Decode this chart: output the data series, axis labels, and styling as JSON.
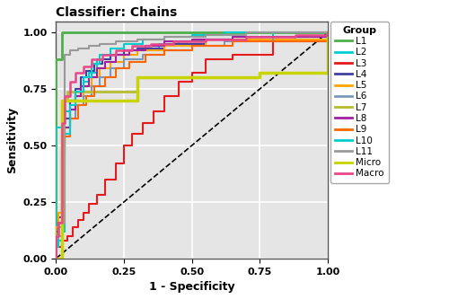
{
  "title": "Classifier: Chains",
  "xlabel": "1 - Specificity",
  "ylabel": "Sensitivity",
  "xlim": [
    0.0,
    1.0
  ],
  "ylim": [
    0.0,
    1.05
  ],
  "background_color": "#e5e5e5",
  "grid_color": "white",
  "groups": [
    "L1",
    "L2",
    "L3",
    "L4",
    "L5",
    "L6",
    "L7",
    "L8",
    "L9",
    "L10",
    "L11",
    "Micro",
    "Macro"
  ],
  "colors": {
    "L1": "#4daf4a",
    "L2": "#00ced1",
    "L3": "#e41a1c",
    "L4": "#4040a0",
    "L5": "#ffa500",
    "L6": "#7799bb",
    "L7": "#b8bc30",
    "L8": "#a020a0",
    "L9": "#ff6600",
    "L10": "#00cccc",
    "L11": "#999999",
    "Micro": "#c8d400",
    "Macro": "#e8488a"
  },
  "curves": {
    "L1": {
      "x": [
        0.0,
        0.0,
        0.02,
        0.02,
        0.3,
        0.3,
        1.0
      ],
      "y": [
        0.0,
        0.88,
        0.88,
        1.0,
        1.0,
        1.0,
        1.0
      ]
    },
    "L2": {
      "x": [
        0.0,
        0.0,
        0.02,
        0.03,
        0.05,
        0.07,
        0.1,
        0.12,
        0.15,
        0.2,
        0.25,
        0.3,
        0.38,
        0.45,
        0.55,
        0.65,
        0.8,
        1.0
      ],
      "y": [
        0.0,
        0.58,
        0.6,
        0.65,
        0.7,
        0.74,
        0.78,
        0.82,
        0.88,
        0.9,
        0.92,
        0.93,
        0.95,
        0.96,
        0.97,
        0.98,
        1.0,
        1.0
      ]
    },
    "L3": {
      "x": [
        0.0,
        0.0,
        0.02,
        0.04,
        0.06,
        0.08,
        0.1,
        0.12,
        0.15,
        0.18,
        0.22,
        0.25,
        0.28,
        0.32,
        0.36,
        0.4,
        0.45,
        0.5,
        0.55,
        0.65,
        0.8,
        1.0
      ],
      "y": [
        0.0,
        0.05,
        0.08,
        0.1,
        0.14,
        0.17,
        0.2,
        0.24,
        0.28,
        0.35,
        0.42,
        0.5,
        0.55,
        0.6,
        0.65,
        0.72,
        0.78,
        0.82,
        0.88,
        0.9,
        0.96,
        1.0
      ]
    },
    "L4": {
      "x": [
        0.0,
        0.0,
        0.01,
        0.02,
        0.03,
        0.05,
        0.07,
        0.09,
        0.11,
        0.14,
        0.17,
        0.2,
        0.25,
        0.3,
        0.4,
        0.55,
        1.0
      ],
      "y": [
        0.0,
        0.12,
        0.18,
        0.55,
        0.62,
        0.7,
        0.75,
        0.8,
        0.83,
        0.86,
        0.88,
        0.9,
        0.92,
        0.93,
        0.95,
        0.97,
        1.0
      ]
    },
    "L5": {
      "x": [
        0.0,
        0.0,
        0.01,
        0.02,
        0.03,
        0.05,
        0.07,
        0.1,
        0.13,
        0.16,
        0.2,
        0.25,
        0.3,
        0.4,
        0.55,
        1.0
      ],
      "y": [
        0.0,
        0.14,
        0.2,
        0.5,
        0.58,
        0.66,
        0.72,
        0.76,
        0.8,
        0.84,
        0.87,
        0.9,
        0.92,
        0.94,
        0.97,
        1.0
      ]
    },
    "L6": {
      "x": [
        0.0,
        0.0,
        0.01,
        0.02,
        0.03,
        0.05,
        0.07,
        0.1,
        0.13,
        0.16,
        0.2,
        0.25,
        0.32,
        0.4,
        0.5,
        0.62,
        0.8,
        1.0
      ],
      "y": [
        0.0,
        0.06,
        0.1,
        0.42,
        0.55,
        0.62,
        0.68,
        0.72,
        0.76,
        0.8,
        0.84,
        0.88,
        0.9,
        0.92,
        0.94,
        0.96,
        0.98,
        1.0
      ]
    },
    "L7": {
      "x": [
        0.0,
        0.0,
        0.02,
        0.02,
        0.04,
        0.04,
        0.3,
        0.3,
        0.75,
        0.75,
        1.0
      ],
      "y": [
        0.0,
        0.0,
        0.0,
        0.7,
        0.7,
        0.74,
        0.74,
        0.8,
        0.8,
        0.82,
        1.0
      ]
    },
    "L8": {
      "x": [
        0.0,
        0.0,
        0.01,
        0.02,
        0.03,
        0.05,
        0.07,
        0.09,
        0.12,
        0.15,
        0.18,
        0.22,
        0.27,
        0.33,
        0.4,
        0.5,
        0.65,
        1.0
      ],
      "y": [
        0.0,
        0.1,
        0.16,
        0.48,
        0.58,
        0.66,
        0.72,
        0.76,
        0.8,
        0.84,
        0.87,
        0.9,
        0.92,
        0.94,
        0.96,
        0.97,
        0.98,
        1.0
      ]
    },
    "L9": {
      "x": [
        0.0,
        0.0,
        0.01,
        0.02,
        0.03,
        0.05,
        0.08,
        0.11,
        0.14,
        0.18,
        0.22,
        0.27,
        0.33,
        0.4,
        0.5,
        0.65,
        1.0
      ],
      "y": [
        0.0,
        0.1,
        0.16,
        0.46,
        0.54,
        0.62,
        0.68,
        0.72,
        0.76,
        0.8,
        0.84,
        0.87,
        0.9,
        0.92,
        0.94,
        0.96,
        1.0
      ]
    },
    "L10": {
      "x": [
        0.0,
        0.0,
        0.01,
        0.02,
        0.03,
        0.05,
        0.07,
        0.1,
        0.13,
        0.16,
        0.2,
        0.25,
        0.32,
        0.4,
        0.5,
        0.62,
        0.8,
        0.9,
        1.0
      ],
      "y": [
        0.0,
        0.05,
        0.08,
        0.12,
        0.55,
        0.68,
        0.74,
        0.8,
        0.86,
        0.9,
        0.93,
        0.95,
        0.97,
        0.98,
        0.99,
        1.0,
        1.0,
        1.0,
        1.0
      ]
    },
    "L11": {
      "x": [
        0.0,
        0.0,
        0.01,
        0.02,
        0.03,
        0.05,
        0.08,
        0.12,
        0.16,
        0.22,
        0.3,
        0.4,
        0.55,
        0.7,
        0.85,
        1.0
      ],
      "y": [
        0.0,
        0.1,
        0.14,
        0.16,
        0.9,
        0.92,
        0.93,
        0.94,
        0.95,
        0.96,
        0.97,
        0.98,
        0.99,
        1.0,
        1.0,
        1.0
      ]
    },
    "Micro": {
      "x": [
        0.0,
        0.0,
        0.02,
        0.02,
        0.04,
        0.3,
        0.3,
        0.75,
        0.75,
        1.0
      ],
      "y": [
        0.0,
        0.0,
        0.0,
        0.7,
        0.7,
        0.7,
        0.8,
        0.8,
        0.82,
        1.0
      ]
    },
    "Macro": {
      "x": [
        0.0,
        0.0,
        0.01,
        0.02,
        0.03,
        0.05,
        0.07,
        0.1,
        0.13,
        0.17,
        0.22,
        0.28,
        0.35,
        0.43,
        0.55,
        0.7,
        0.88,
        1.0
      ],
      "y": [
        0.0,
        0.1,
        0.16,
        0.6,
        0.72,
        0.78,
        0.82,
        0.85,
        0.88,
        0.9,
        0.92,
        0.94,
        0.95,
        0.96,
        0.97,
        0.98,
        0.99,
        1.0
      ]
    }
  },
  "linewidths": {
    "L1": 2.0,
    "L2": 1.5,
    "L3": 1.5,
    "L4": 1.5,
    "L5": 1.5,
    "L6": 1.5,
    "L7": 2.0,
    "L8": 1.5,
    "L9": 1.5,
    "L10": 1.5,
    "L11": 1.5,
    "Micro": 2.5,
    "Macro": 1.8
  },
  "xticks": [
    0.0,
    0.25,
    0.5,
    0.75,
    1.0
  ],
  "yticks": [
    0.0,
    0.25,
    0.5,
    0.75,
    1.0
  ],
  "tick_labels": [
    "0.00",
    "0.25",
    "0.50",
    "0.75",
    "1.00"
  ]
}
